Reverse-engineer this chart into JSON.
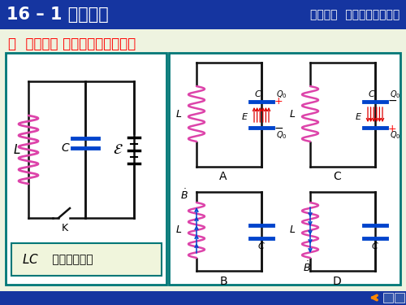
{
  "title_left": "16 – 1 电磁振荡",
  "title_right": "第十六章  电磁振荡和电磁波",
  "subtitle": "一  振荡电路 无阵尼自由电磁振荡",
  "box_label": "LC 电磁振荡电路",
  "header_bg": "#1535a0",
  "header_text_color": "#ffffff",
  "subtitle_color": "#ff0000",
  "main_bg": "#eef3e0",
  "circuit_bg": "#ffffff",
  "coil_color": "#dd44aa",
  "cap_color": "#0044cc",
  "wire_color": "#111111",
  "red_color": "#dd0000",
  "blue_color": "#0044cc",
  "footer_bg": "#1535a0",
  "panel_edge": "#007777"
}
